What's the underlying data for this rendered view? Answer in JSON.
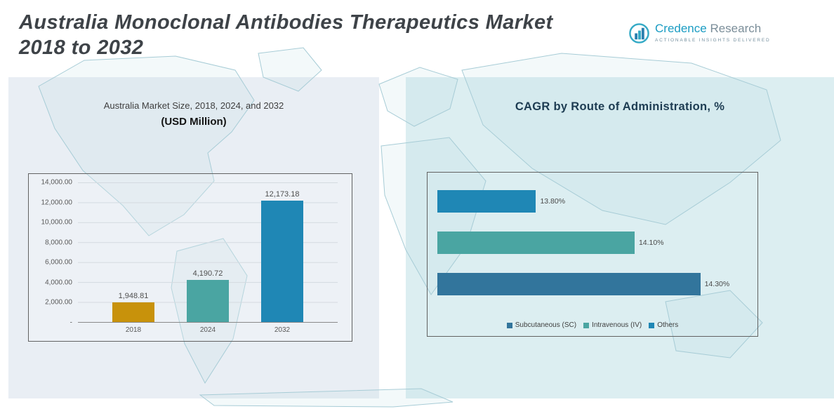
{
  "header": {
    "title_line1": "Australia Monoclonal Antibodies Therapeutics Market",
    "title_line2": "2018 to 2032",
    "logo": {
      "brand_primary": "Credence",
      "brand_secondary": "Research",
      "tagline": "Actionable Insights Delivered"
    }
  },
  "left_panel": {
    "title": "Australia Market Size, 2018, 2024, and 2032",
    "subtitle": "(USD Million)"
  },
  "right_panel": {
    "title": "CAGR by Route of Administration, %"
  },
  "chart_data": [
    {
      "type": "bar",
      "title": "Australia Market Size, 2018, 2024, and 2032 (USD Million)",
      "categories": [
        "2018",
        "2024",
        "2032"
      ],
      "values": [
        1948.81,
        4190.72,
        12173.18
      ],
      "value_labels": [
        "1,948.81",
        "4,190.72",
        "12,173.18"
      ],
      "bar_colors": [
        "#c8920b",
        "#4aa5a2",
        "#1f87b5"
      ],
      "xlabel": "",
      "ylabel": "",
      "ylim": [
        0,
        14000
      ],
      "ytick_labels": [
        "14,000.00",
        "12,000.00",
        "10,000.00",
        "8,000.00",
        "6,000.00",
        "4,000.00",
        "2,000.00",
        "-"
      ],
      "grid": true,
      "legend_position": "none"
    },
    {
      "type": "bar",
      "orientation": "horizontal",
      "title": "CAGR by Route of Administration, %",
      "categories": [
        "Others",
        "Intravenous (IV)",
        "Subcutaneous (SC)"
      ],
      "values": [
        13.8,
        14.1,
        14.3
      ],
      "value_labels": [
        "13.80%",
        "14.10%",
        "14.30%"
      ],
      "bar_colors": [
        "#1f87b5",
        "#4aa5a2",
        "#32759c"
      ],
      "xlim": [
        13.5,
        14.35
      ],
      "grid": false,
      "legend_position": "bottom",
      "legend": [
        {
          "label": "Subcutaneous (SC)",
          "color": "#32759c"
        },
        {
          "label": "Intravenous (IV)",
          "color": "#4aa5a2"
        },
        {
          "label": "Others",
          "color": "#1f87b5"
        }
      ]
    }
  ]
}
